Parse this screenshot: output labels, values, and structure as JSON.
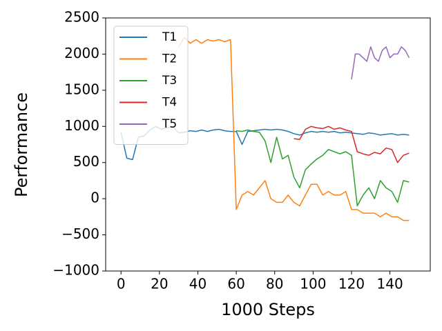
{
  "chart_data": {
    "type": "line",
    "xlabel": "1000 Steps",
    "ylabel": "Performance",
    "xlim": [
      -8,
      161
    ],
    "ylim": [
      -1000,
      2500
    ],
    "xticks": [
      0,
      20,
      40,
      60,
      80,
      100,
      120,
      140
    ],
    "yticks": [
      {
        "value": -1000,
        "label": "−1000"
      },
      {
        "value": -500,
        "label": "−500"
      },
      0,
      500,
      1000,
      1500,
      2000,
      2500
    ],
    "legend": "upper left",
    "series": [
      {
        "name": "T1",
        "color": "#1f77b4",
        "x": [
          0,
          3,
          6,
          9,
          12,
          15,
          18,
          21,
          24,
          27,
          30,
          33,
          36,
          39,
          42,
          45,
          48,
          51,
          54,
          57,
          60,
          63,
          66,
          69,
          72,
          75,
          78,
          81,
          84,
          87,
          90,
          93,
          96,
          99,
          102,
          105,
          108,
          111,
          114,
          117,
          120,
          123,
          126,
          129,
          132,
          135,
          138,
          141,
          144,
          147,
          150
        ],
        "values": [
          920,
          560,
          540,
          850,
          870,
          950,
          1000,
          960,
          980,
          1000,
          910,
          920,
          940,
          930,
          950,
          930,
          950,
          960,
          940,
          930,
          930,
          750,
          930,
          940,
          950,
          960,
          950,
          960,
          950,
          930,
          900,
          880,
          910,
          930,
          920,
          930,
          920,
          930,
          910,
          920,
          910,
          900,
          890,
          910,
          900,
          880,
          890,
          900,
          880,
          890,
          880
        ]
      },
      {
        "name": "T2",
        "color": "#ff7f0e",
        "x": [
          30,
          33,
          36,
          39,
          42,
          45,
          48,
          51,
          54,
          57,
          60,
          63,
          66,
          69,
          72,
          75,
          78,
          81,
          84,
          87,
          90,
          93,
          96,
          99,
          102,
          105,
          108,
          111,
          114,
          117,
          120,
          123,
          126,
          129,
          132,
          135,
          138,
          141,
          144,
          147,
          150
        ],
        "values": [
          2100,
          2230,
          2150,
          2200,
          2150,
          2200,
          2180,
          2200,
          2170,
          2200,
          -150,
          50,
          100,
          50,
          150,
          250,
          0,
          -50,
          -50,
          50,
          -50,
          -100,
          50,
          200,
          200,
          50,
          100,
          50,
          50,
          100,
          -150,
          -150,
          -200,
          -200,
          -200,
          -250,
          -200,
          -250,
          -250,
          -300,
          -300
        ]
      },
      {
        "name": "T3",
        "color": "#2ca02c",
        "x": [
          60,
          63,
          66,
          69,
          72,
          75,
          78,
          81,
          84,
          87,
          90,
          93,
          96,
          99,
          102,
          105,
          108,
          111,
          114,
          117,
          120,
          123,
          126,
          129,
          132,
          135,
          138,
          141,
          144,
          147,
          150
        ],
        "values": [
          940,
          930,
          950,
          930,
          920,
          800,
          500,
          850,
          550,
          600,
          300,
          150,
          400,
          480,
          550,
          600,
          680,
          650,
          620,
          650,
          600,
          -100,
          50,
          150,
          0,
          250,
          150,
          100,
          -50,
          250,
          230
        ]
      },
      {
        "name": "T4",
        "color": "#d62728",
        "x": [
          90,
          93,
          96,
          99,
          102,
          105,
          108,
          111,
          114,
          117,
          120,
          123,
          126,
          129,
          132,
          135,
          138,
          141,
          144,
          147,
          150
        ],
        "values": [
          830,
          820,
          960,
          1000,
          980,
          970,
          1000,
          960,
          980,
          950,
          930,
          650,
          620,
          600,
          640,
          620,
          700,
          680,
          500,
          600,
          630
        ]
      },
      {
        "name": "T5",
        "color": "#9467bd",
        "x": [
          120,
          122,
          124,
          126,
          128,
          130,
          132,
          134,
          136,
          138,
          140,
          142,
          144,
          146,
          148,
          150
        ],
        "values": [
          1650,
          2000,
          2000,
          1950,
          1900,
          2100,
          1950,
          1900,
          2050,
          2100,
          1950,
          2000,
          2000,
          2100,
          2050,
          1950
        ]
      }
    ]
  }
}
